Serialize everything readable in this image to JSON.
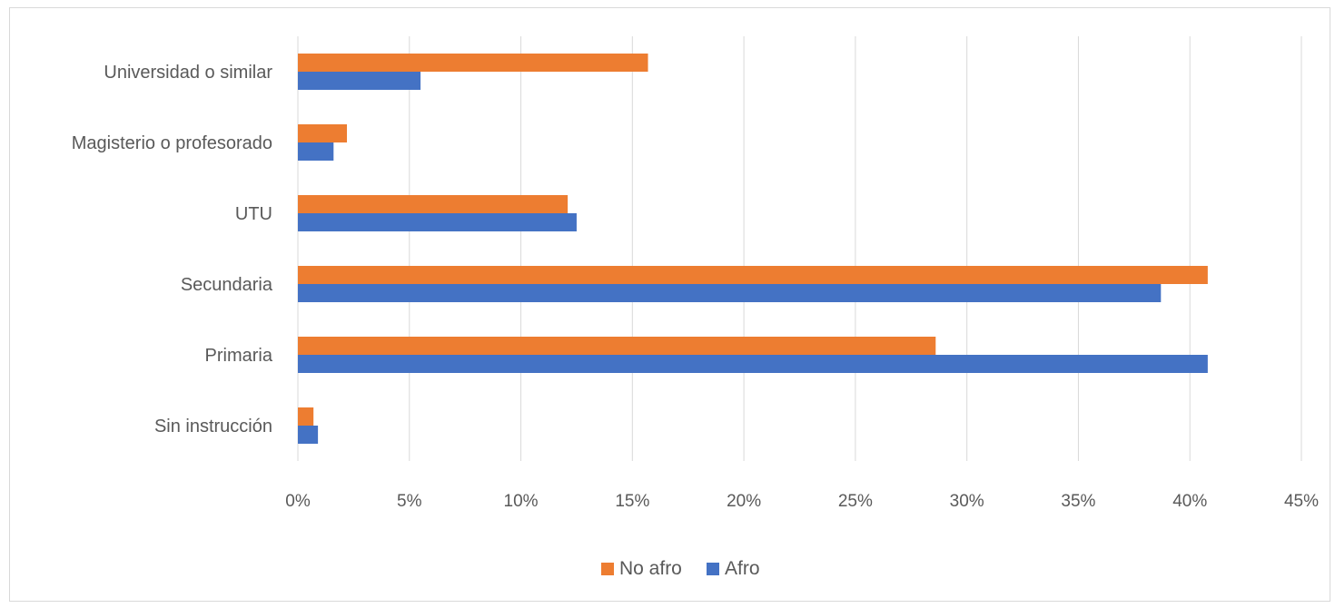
{
  "chart_data": {
    "type": "bar",
    "orientation": "horizontal",
    "categories": [
      "Universidad o similar",
      "Magisterio o profesorado",
      "UTU",
      "Secundaria",
      "Primaria",
      "Sin instrucción"
    ],
    "series": [
      {
        "name": "No afro",
        "color": "#ED7D31",
        "values": [
          15.7,
          2.2,
          12.1,
          40.8,
          28.6,
          0.7
        ]
      },
      {
        "name": "Afro",
        "color": "#4472C4",
        "values": [
          5.5,
          1.6,
          12.5,
          38.7,
          40.8,
          0.9
        ]
      }
    ],
    "x_ticks": [
      "0%",
      "5%",
      "10%",
      "15%",
      "20%",
      "25%",
      "30%",
      "35%",
      "40%",
      "45%"
    ],
    "xlim": [
      0,
      45
    ],
    "x_tick_step": 5,
    "grid": true,
    "legend_position": "bottom",
    "title": "",
    "xlabel": "",
    "ylabel": ""
  }
}
